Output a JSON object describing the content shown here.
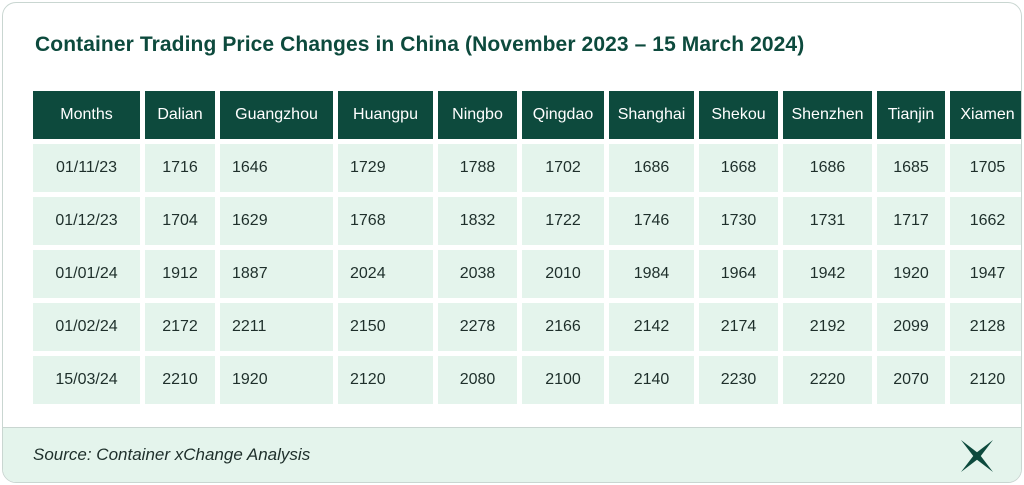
{
  "chart_data": {
    "type": "table",
    "title": "Container Trading Price Changes in China (November 2023 – 15 March 2024)",
    "columns": [
      "Months",
      "Dalian",
      "Guangzhou",
      "Huangpu",
      "Ningbo",
      "Qingdao",
      "Shanghai",
      "Shekou",
      "Shenzhen",
      "Tianjin",
      "Xiamen"
    ],
    "rows": [
      [
        "01/11/23",
        "1716",
        "1646",
        "1729",
        "1788",
        "1702",
        "1686",
        "1668",
        "1686",
        "1685",
        "1705"
      ],
      [
        "01/12/23",
        "1704",
        "1629",
        "1768",
        "1832",
        "1722",
        "1746",
        "1730",
        "1731",
        "1717",
        "1662"
      ],
      [
        "01/01/24",
        "1912",
        "1887",
        "2024",
        "2038",
        "2010",
        "1984",
        "1964",
        "1942",
        "1920",
        "1947"
      ],
      [
        "01/02/24",
        "2172",
        "2211",
        "2150",
        "2278",
        "2166",
        "2142",
        "2174",
        "2192",
        "2099",
        "2128"
      ],
      [
        "15/03/24",
        "2210",
        "1920",
        "2120",
        "2080",
        "2100",
        "2140",
        "2230",
        "2220",
        "2070",
        "2120"
      ]
    ],
    "source": "Source: Container xChange Analysis"
  },
  "colors": {
    "header_bg": "#0d4a3d",
    "cell_bg": "#e4f4ec",
    "title_text": "#0d4a3d"
  },
  "icons": {
    "logo": "xchange-logo-icon"
  }
}
